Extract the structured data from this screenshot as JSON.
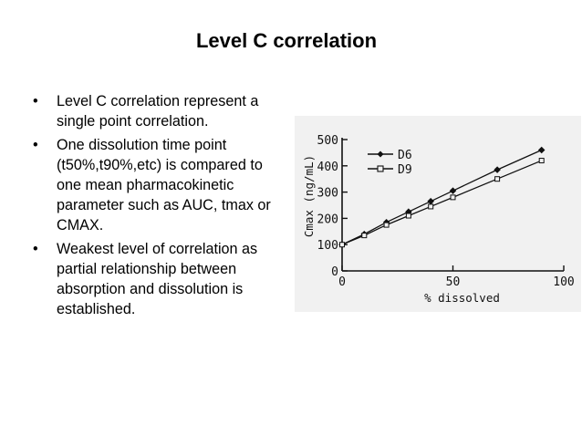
{
  "title": "Level C correlation",
  "bullets": [
    "Level C correlation represent a single point correlation.",
    "One dissolution time point (t50%,t90%,etc) is compared to one mean pharmacokinetic parameter such as AUC, tmax or CMAX.",
    "Weakest level of correlation as partial relationship between absorption and dissolution is established."
  ],
  "bullet_symbol": "•",
  "chart_data": {
    "type": "line",
    "title": "",
    "xlabel": "% dissolved",
    "ylabel": "Cmax (ng/mL)",
    "xlim": [
      0,
      100
    ],
    "ylim": [
      0,
      500
    ],
    "x_ticks": [
      "0",
      "50",
      "100"
    ],
    "y_ticks": [
      "0",
      "100",
      "200",
      "300",
      "400",
      "500"
    ],
    "legend_position": "top-left",
    "series": [
      {
        "name": "D6",
        "marker": "filled-diamond",
        "x": [
          0,
          10,
          20,
          30,
          40,
          50,
          70,
          90
        ],
        "y": [
          100,
          140,
          185,
          225,
          265,
          305,
          385,
          460
        ]
      },
      {
        "name": "D9",
        "marker": "open-square",
        "x": [
          0,
          10,
          20,
          30,
          40,
          50,
          70,
          90
        ],
        "y": [
          100,
          135,
          175,
          210,
          245,
          280,
          350,
          420
        ]
      }
    ]
  }
}
